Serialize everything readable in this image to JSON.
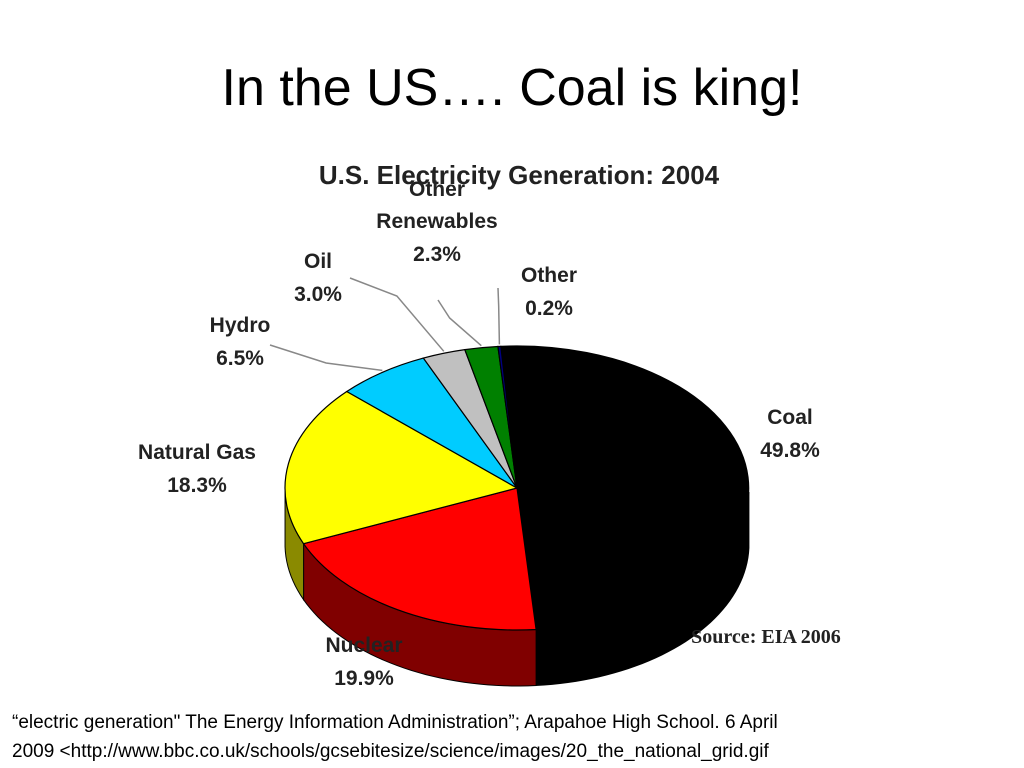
{
  "slide": {
    "title": "In the US…. Coal is king!",
    "caption_line1": "“electric generation\" The Energy Information Administration”;  Arapahoe High School.  6 April",
    "caption_line2": "2009  <http://www.bbc.co.uk/schools/gcsebitesize/science/images/20_the_national_grid.gif"
  },
  "chart_data": {
    "type": "pie",
    "style": "3d",
    "title": "U.S. Electricity Generation: 2004",
    "source": "Source: EIA 2006",
    "slices": [
      {
        "label": "Coal",
        "value_label": "49.8%",
        "value": 49.8,
        "color": "#000000",
        "side_color": "#000000"
      },
      {
        "label": "Nuclear",
        "value_label": "19.9%",
        "value": 19.9,
        "color": "#ff0000",
        "side_color": "#800000"
      },
      {
        "label": "Natural Gas",
        "value_label": "18.3%",
        "value": 18.3,
        "color": "#ffff00",
        "side_color": "#8a8a00"
      },
      {
        "label": "Hydro",
        "value_label": "6.5%",
        "value": 6.5,
        "color": "#00ccff",
        "side_color": "#006680"
      },
      {
        "label": "Oil",
        "value_label": "3.0%",
        "value": 3.0,
        "color": "#c0c0c0",
        "side_color": "#606060"
      },
      {
        "label": "Other Renewables",
        "value_label": "2.3%",
        "value": 2.3,
        "color": "#008000",
        "side_color": "#004000"
      },
      {
        "label": "Other",
        "value_label": "0.2%",
        "value": 0.2,
        "color": "#000080",
        "side_color": "#000040"
      }
    ]
  }
}
